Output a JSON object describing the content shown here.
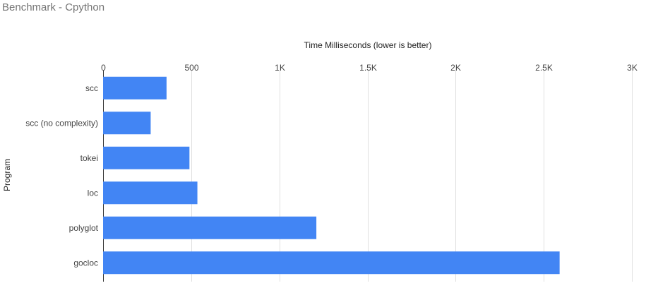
{
  "chart_data": {
    "type": "bar",
    "orientation": "horizontal",
    "title": "Benchmark - Cpython",
    "xlabel": "Time Milliseconds (lower is better)",
    "ylabel": "Program",
    "categories": [
      "scc",
      "scc (no complexity)",
      "tokei",
      "loc",
      "polyglot",
      "gocloc"
    ],
    "values": [
      360,
      270,
      490,
      535,
      1210,
      2590
    ],
    "xlim": [
      0,
      3000
    ],
    "xticks": [
      0,
      500,
      1000,
      1500,
      2000,
      2500,
      3000
    ],
    "xtick_labels": [
      "0",
      "500",
      "1K",
      "1.5K",
      "2K",
      "2.5K",
      "3K"
    ],
    "grid": true,
    "x_axis_position": "top",
    "legend": "none",
    "bar_color": "#4285f4"
  }
}
